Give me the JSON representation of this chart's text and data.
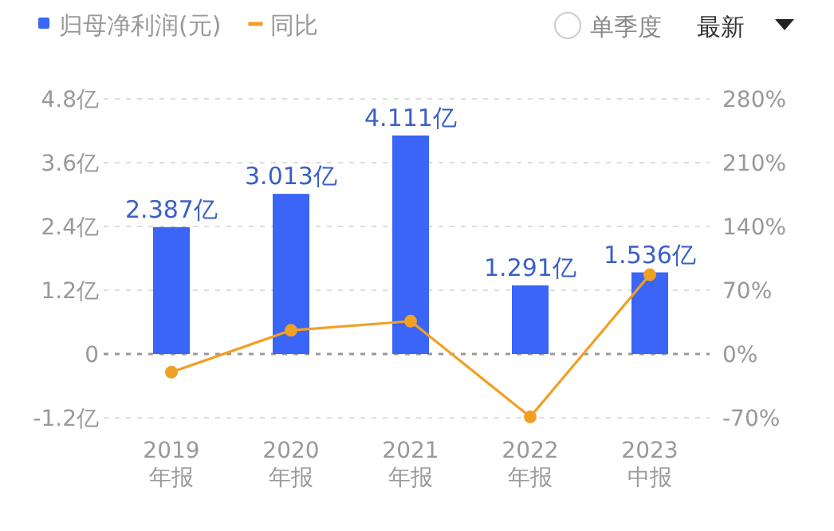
{
  "chart_data": {
    "type": "bar",
    "categories": [
      "2019\n年报",
      "2020\n年报",
      "2021\n年报",
      "2022\n年报",
      "2023\n中报"
    ],
    "series": [
      {
        "name": "归母净利润(元)",
        "color": "#3b65f6",
        "values": [
          2.387,
          3.013,
          4.111,
          1.291,
          1.536
        ],
        "value_labels": [
          "2.387亿",
          "3.013亿",
          "4.111亿",
          "1.291亿",
          "1.536亿"
        ]
      },
      {
        "name": "同比",
        "type": "line",
        "axis": "y2",
        "color": "#f0a023",
        "marker": "circle",
        "values": [
          -20,
          26,
          36,
          -69,
          87
        ]
      }
    ],
    "ylim": [
      -1.2,
      4.8
    ],
    "yticks": [
      {
        "value": -1.2,
        "label": "-1.2亿"
      },
      {
        "value": 0,
        "label": "0"
      },
      {
        "value": 1.2,
        "label": "1.2亿"
      },
      {
        "value": 2.4,
        "label": "2.4亿"
      },
      {
        "value": 3.6,
        "label": "3.6亿"
      },
      {
        "value": 4.8,
        "label": "4.8亿"
      }
    ],
    "y2lim": [
      -70,
      280
    ],
    "y2ticks": [
      {
        "value": -70,
        "label": "-70%"
      },
      {
        "value": 0,
        "label": "0%"
      },
      {
        "value": 70,
        "label": "70%"
      },
      {
        "value": 140,
        "label": "140%"
      },
      {
        "value": 210,
        "label": "210%"
      },
      {
        "value": 280,
        "label": "280%"
      }
    ],
    "ref_lines": [
      {
        "axis": "y",
        "value": 0,
        "color": "#999999",
        "line_style": "dashed"
      }
    ],
    "grid": "y",
    "legend": "top left",
    "annotations": [
      "单季度",
      "最新"
    ]
  }
}
